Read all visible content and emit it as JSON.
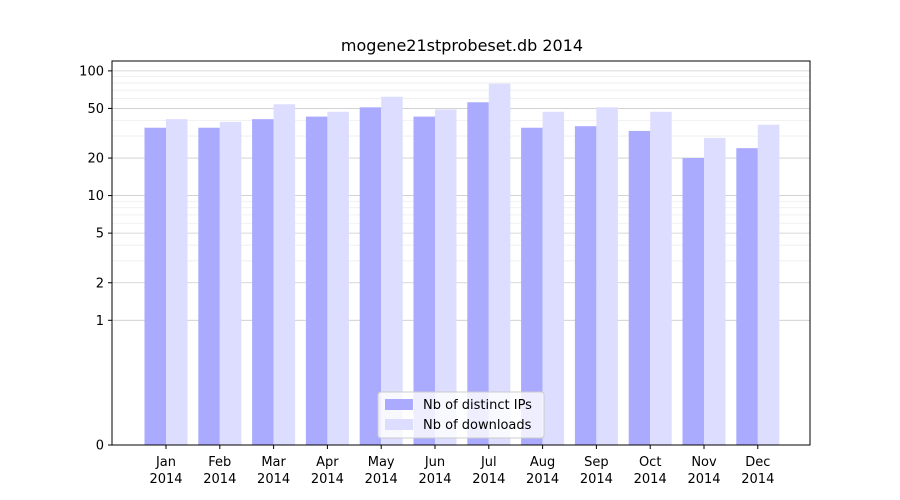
{
  "chart_data": {
    "type": "bar",
    "title": "mogene21stprobeset.db 2014",
    "xlabel": "",
    "ylabel": "",
    "yscale": "symlog",
    "ylim": [
      0,
      120
    ],
    "yticks": [
      0,
      1,
      2,
      5,
      10,
      20,
      50,
      100
    ],
    "categories": [
      {
        "month": "Jan",
        "year": "2014"
      },
      {
        "month": "Feb",
        "year": "2014"
      },
      {
        "month": "Mar",
        "year": "2014"
      },
      {
        "month": "Apr",
        "year": "2014"
      },
      {
        "month": "May",
        "year": "2014"
      },
      {
        "month": "Jun",
        "year": "2014"
      },
      {
        "month": "Jul",
        "year": "2014"
      },
      {
        "month": "Aug",
        "year": "2014"
      },
      {
        "month": "Sep",
        "year": "2014"
      },
      {
        "month": "Oct",
        "year": "2014"
      },
      {
        "month": "Nov",
        "year": "2014"
      },
      {
        "month": "Dec",
        "year": "2014"
      }
    ],
    "series": [
      {
        "name": "Nb of distinct IPs",
        "color": "#aaaaff",
        "values": [
          35,
          35,
          41,
          43,
          51,
          43,
          56,
          35,
          36,
          33,
          20,
          24
        ]
      },
      {
        "name": "Nb of downloads",
        "color": "#ddddff",
        "values": [
          41,
          39,
          54,
          47,
          62,
          49,
          79,
          47,
          51,
          47,
          29,
          37
        ]
      }
    ],
    "grid": true,
    "legend_position": "bottom-center"
  }
}
